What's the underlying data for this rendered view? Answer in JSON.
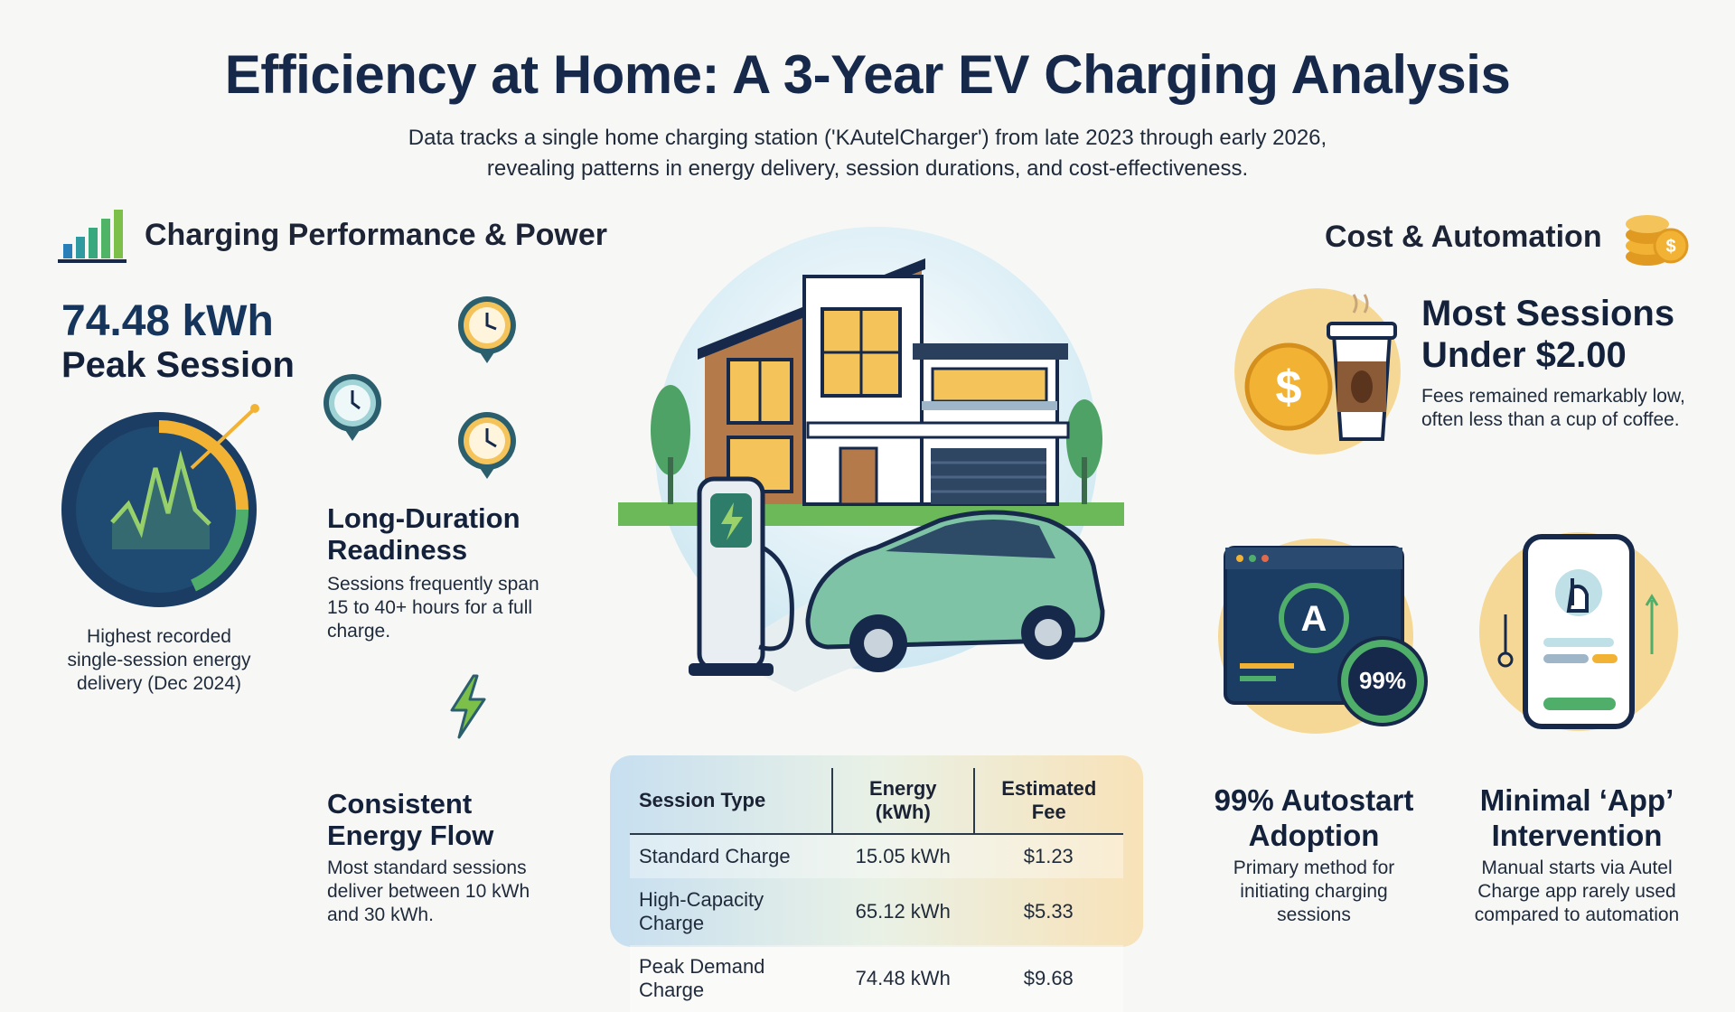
{
  "title": "Efficiency at Home: A 3-Year EV Charging Analysis",
  "subtitle_line1": "Data tracks a single home charging station ('KAutelCharger') from late 2023 through early 2026,",
  "subtitle_line2": "revealing patterns in energy delivery, session durations, and cost-effectiveness.",
  "left_section": {
    "title": "Charging Performance & Power",
    "icon": "bar-chart-icon",
    "peak_value": "74.48 kWh",
    "peak_label": "Peak Session",
    "peak_desc": [
      "Highest recorded",
      "single-session energy",
      "delivery (Dec 2024)"
    ],
    "duration_title": [
      "Long-Duration",
      "Readiness"
    ],
    "duration_desc": [
      "Sessions frequently span",
      "15 to 40+ hours for a full",
      "charge."
    ],
    "flow_title": [
      "Consistent",
      "Energy Flow"
    ],
    "flow_desc": [
      "Most standard sessions",
      "deliver between 10 kWh",
      "and 30 kWh."
    ]
  },
  "right_section": {
    "title": "Cost & Automation",
    "icon": "coins-icon",
    "cost_title": [
      "Most Sessions",
      "Under $2.00"
    ],
    "cost_desc": [
      "Fees remained remarkably low,",
      "often less than a cup of coffee."
    ],
    "autostart_badge": "99%",
    "autostart_title": [
      "99% Autostart",
      "Adoption"
    ],
    "autostart_desc": [
      "Primary method for",
      "initiating charging",
      "sessions"
    ],
    "app_title": [
      "Minimal ‘App’",
      "Intervention"
    ],
    "app_desc": [
      "Manual starts via Autel",
      "Charge app rarely used",
      "compared to automation"
    ]
  },
  "table": {
    "headers": [
      "Session Type",
      "Energy (kWh)",
      "Estimated Fee"
    ],
    "rows": [
      [
        "Standard Charge",
        "15.05 kWh",
        "$1.23"
      ],
      [
        "High-Capacity Charge",
        "65.12 kWh",
        "$5.33"
      ],
      [
        "Peak Demand Charge",
        "74.48 kWh",
        "$9.68"
      ]
    ]
  },
  "colors": {
    "navy": "#16294a",
    "accent_gold": "#f2b233",
    "accent_teal": "#3a9a8a",
    "accent_green": "#4fae6a"
  }
}
